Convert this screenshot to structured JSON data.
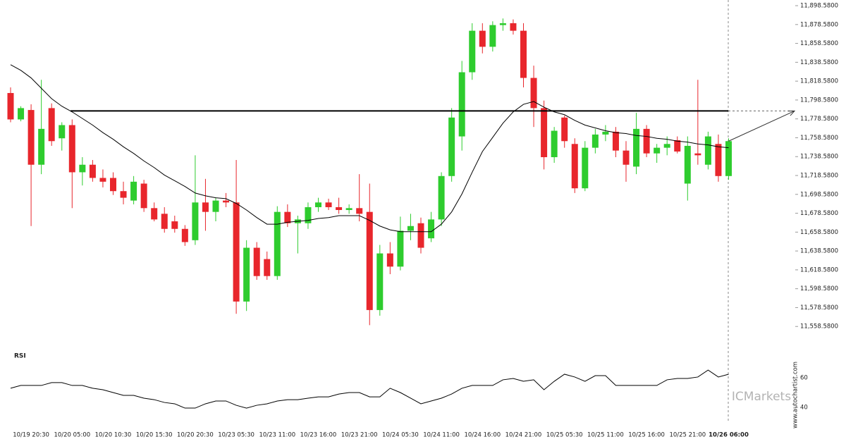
{
  "chart_data": {
    "type": "candlestick",
    "categories": [
      null,
      null,
      "10/19 20:30",
      null,
      null,
      null,
      "10/20 05:00",
      null,
      null,
      null,
      "10/20 10:30",
      null,
      null,
      null,
      "10/20 15:30",
      null,
      null,
      null,
      "10/20 20:30",
      null,
      null,
      null,
      "10/23 05:30",
      null,
      null,
      null,
      "10/23 11:00",
      null,
      null,
      null,
      "10/23 16:00",
      null,
      null,
      null,
      "10/23 21:00",
      null,
      null,
      null,
      "10/24 05:30",
      null,
      null,
      null,
      "10/24 11:00",
      null,
      null,
      null,
      "10/24 16:00",
      null,
      null,
      null,
      "10/24 21:00",
      null,
      null,
      null,
      "10/25 05:30",
      null,
      null,
      null,
      "10/25 11:00",
      null,
      null,
      null,
      "10/25 16:00",
      null,
      null,
      null,
      "10/25 21:00",
      null,
      null,
      null,
      "10/26 06:00"
    ],
    "open": [
      11806,
      11778,
      11788,
      11730,
      11790,
      11758,
      11772,
      11722,
      11730,
      11716,
      11716,
      11702,
      11692,
      11710,
      11684,
      11678,
      11670,
      11662,
      11650,
      11690,
      11680,
      11692,
      11690,
      11585,
      11642,
      11630,
      11612,
      11680,
      11668,
      11668,
      11685,
      11690,
      11685,
      11682,
      11684,
      11680,
      11576,
      11636,
      11622,
      11660,
      11668,
      11652,
      11672,
      11718,
      11760,
      11828,
      11872,
      11855,
      11878,
      11880,
      11872,
      11822,
      11790,
      11738,
      11780,
      11752,
      11705,
      11748,
      11762,
      11765,
      11745,
      11728,
      11768,
      11742,
      11748,
      11756,
      11710,
      11742,
      11730,
      11752,
      11718
    ],
    "high": [
      11812,
      11792,
      11794,
      11820,
      11795,
      11775,
      11778,
      11738,
      11735,
      11725,
      11722,
      11712,
      11718,
      11714,
      11690,
      11685,
      11676,
      11666,
      11740,
      11715,
      11695,
      11700,
      11735,
      11650,
      11648,
      11638,
      11686,
      11688,
      11676,
      11690,
      11695,
      11694,
      11695,
      11688,
      11720,
      11710,
      11645,
      11648,
      11675,
      11678,
      11674,
      11680,
      11722,
      11790,
      11840,
      11880,
      11880,
      11882,
      11885,
      11884,
      11880,
      11835,
      11798,
      11770,
      11782,
      11758,
      11755,
      11768,
      11772,
      11770,
      11755,
      11785,
      11772,
      11752,
      11760,
      11760,
      11760,
      11820,
      11765,
      11762,
      11758
    ],
    "low": [
      11775,
      11776,
      11665,
      11720,
      11750,
      11745,
      11684,
      11708,
      11712,
      11706,
      11698,
      11688,
      11688,
      11680,
      11670,
      11658,
      11658,
      11644,
      11645,
      11660,
      11670,
      11685,
      11572,
      11575,
      11608,
      11608,
      11608,
      11664,
      11636,
      11662,
      11680,
      11682,
      11678,
      11678,
      11670,
      11560,
      11570,
      11614,
      11618,
      11650,
      11636,
      11648,
      11665,
      11712,
      11745,
      11820,
      11848,
      11850,
      11872,
      11868,
      11812,
      11770,
      11725,
      11732,
      11748,
      11700,
      11702,
      11742,
      11755,
      11738,
      11712,
      11720,
      11738,
      11732,
      11740,
      11742,
      11692,
      11730,
      11725,
      11712,
      11714
    ],
    "close": [
      11778,
      11790,
      11730,
      11768,
      11755,
      11772,
      11722,
      11730,
      11716,
      11712,
      11702,
      11695,
      11712,
      11684,
      11672,
      11662,
      11662,
      11648,
      11690,
      11680,
      11692,
      11690,
      11585,
      11642,
      11612,
      11612,
      11680,
      11668,
      11672,
      11685,
      11690,
      11685,
      11682,
      11684,
      11678,
      11576,
      11636,
      11622,
      11660,
      11665,
      11642,
      11672,
      11718,
      11780,
      11828,
      11872,
      11855,
      11878,
      11880,
      11872,
      11822,
      11790,
      11738,
      11766,
      11755,
      11705,
      11748,
      11762,
      11765,
      11745,
      11730,
      11768,
      11742,
      11748,
      11752,
      11744,
      11750,
      11740,
      11760,
      11718,
      11755
    ],
    "up_color": "#2ecc2e",
    "down_color": "#e8262c",
    "moving_average": {
      "color": "#000000",
      "values": [
        11836,
        11830,
        11822,
        11811,
        11800,
        11792,
        11786,
        11779,
        11772,
        11764,
        11757,
        11749,
        11742,
        11734,
        11727,
        11719,
        11713,
        11707,
        11700,
        11697,
        11695,
        11694,
        11689,
        11682,
        11674,
        11667,
        11667,
        11669,
        11670,
        11671,
        11673,
        11674,
        11676,
        11676,
        11676,
        11671,
        11665,
        11661,
        11659,
        11659,
        11659,
        11659,
        11667,
        11680,
        11699,
        11722,
        11744,
        11759,
        11774,
        11786,
        11794,
        11797,
        11791,
        11786,
        11783,
        11777,
        11772,
        11769,
        11766,
        11764,
        11763,
        11761,
        11760,
        11758,
        11757,
        11755,
        11754,
        11752,
        11751,
        11749,
        11748
      ]
    },
    "level": 11787,
    "ylim": [
      11538.58,
      11904.58
    ],
    "yticks": [
      {
        "value": 11558.58,
        "label": "11,558.5800"
      },
      {
        "value": 11578.58,
        "label": "11,578.5800"
      },
      {
        "value": 11598.58,
        "label": "11,598.5800"
      },
      {
        "value": 11618.58,
        "label": "11,618.5800"
      },
      {
        "value": 11638.58,
        "label": "11,638.5800"
      },
      {
        "value": 11658.58,
        "label": "11,658.5800"
      },
      {
        "value": 11678.58,
        "label": "11,678.5800"
      },
      {
        "value": 11698.58,
        "label": "11,698.5800"
      },
      {
        "value": 11718.58,
        "label": "11,718.5800"
      },
      {
        "value": 11738.58,
        "label": "11,738.5800"
      },
      {
        "value": 11758.58,
        "label": "11,758.5800"
      },
      {
        "value": 11778.58,
        "label": "11,778.5800"
      },
      {
        "value": 11798.58,
        "label": "11,798.5800"
      },
      {
        "value": 11818.58,
        "label": "11,818.5800"
      },
      {
        "value": 11838.58,
        "label": "11,838.5800"
      },
      {
        "value": 11858.58,
        "label": "11,858.5800"
      },
      {
        "value": 11878.58,
        "label": "11,878.5800"
      },
      {
        "value": 11898.58,
        "label": "11,898.5800"
      }
    ],
    "rsi": {
      "title": "RSI",
      "color": "#000000",
      "ylim": [
        25,
        75
      ],
      "yticks": [
        60,
        40
      ],
      "values": [
        52.9,
        54.8,
        54.8,
        54.8,
        56.7,
        56.7,
        54.8,
        54.8,
        52.9,
        51.9,
        50,
        48.1,
        48.1,
        46.2,
        45.2,
        43.3,
        42.4,
        39.5,
        39.5,
        42.4,
        44.3,
        44.3,
        41.4,
        39.5,
        41.4,
        42.4,
        44.3,
        45.2,
        45.2,
        46.2,
        47.1,
        47.1,
        49,
        50,
        50,
        47.1,
        47.1,
        52.9,
        50,
        46.2,
        42.4,
        44.3,
        46.2,
        49,
        52.9,
        54.8,
        54.8,
        54.8,
        58.6,
        59.5,
        57.6,
        58.6,
        51.9,
        57.6,
        62.4,
        60.5,
        57.6,
        61.4,
        61.4,
        54.8,
        54.8,
        54.8,
        54.8,
        54.8,
        58.6,
        59.5,
        59.5,
        60.5,
        65.2,
        60.5,
        62.4
      ]
    },
    "watermark": "ICMarkets",
    "source": "www.autochartist.com"
  }
}
